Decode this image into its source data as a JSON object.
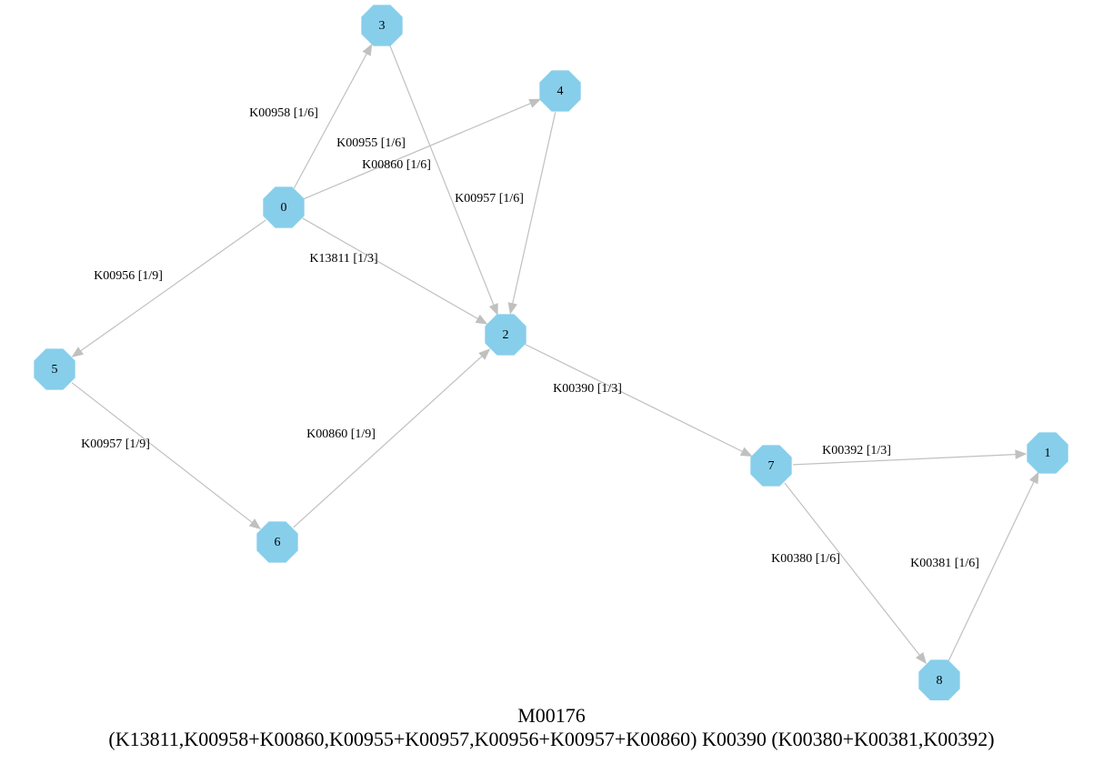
{
  "diagram": {
    "title": "M00176",
    "expression": "(K13811,K00958+K00860,K00955+K00957,K00956+K00957+K00860) K00390 (K00380+K00381,K00392)",
    "node_color": "#87ceeb",
    "edge_color": "#c0c0c0",
    "nodes": [
      {
        "id": "0",
        "label": "0"
      },
      {
        "id": "1",
        "label": "1"
      },
      {
        "id": "2",
        "label": "2"
      },
      {
        "id": "3",
        "label": "3"
      },
      {
        "id": "4",
        "label": "4"
      },
      {
        "id": "5",
        "label": "5"
      },
      {
        "id": "6",
        "label": "6"
      },
      {
        "id": "7",
        "label": "7"
      },
      {
        "id": "8",
        "label": "8"
      }
    ],
    "edges": [
      {
        "from": "0",
        "to": "3",
        "label": "K00958 [1/6]"
      },
      {
        "from": "0",
        "to": "4",
        "label": "K00955 [1/6]"
      },
      {
        "from": "0",
        "to": "2",
        "label": "K13811 [1/3]"
      },
      {
        "from": "0",
        "to": "5",
        "label": "K00956 [1/9]"
      },
      {
        "from": "3",
        "to": "2",
        "label": "K00860 [1/6]"
      },
      {
        "from": "4",
        "to": "2",
        "label": "K00957 [1/6]"
      },
      {
        "from": "5",
        "to": "6",
        "label": "K00957 [1/9]"
      },
      {
        "from": "6",
        "to": "2",
        "label": "K00860 [1/9]"
      },
      {
        "from": "2",
        "to": "7",
        "label": "K00390 [1/3]"
      },
      {
        "from": "7",
        "to": "1",
        "label": "K00392 [1/3]"
      },
      {
        "from": "7",
        "to": "8",
        "label": "K00380 [1/6]"
      },
      {
        "from": "8",
        "to": "1",
        "label": "K00381 [1/6]"
      }
    ]
  }
}
